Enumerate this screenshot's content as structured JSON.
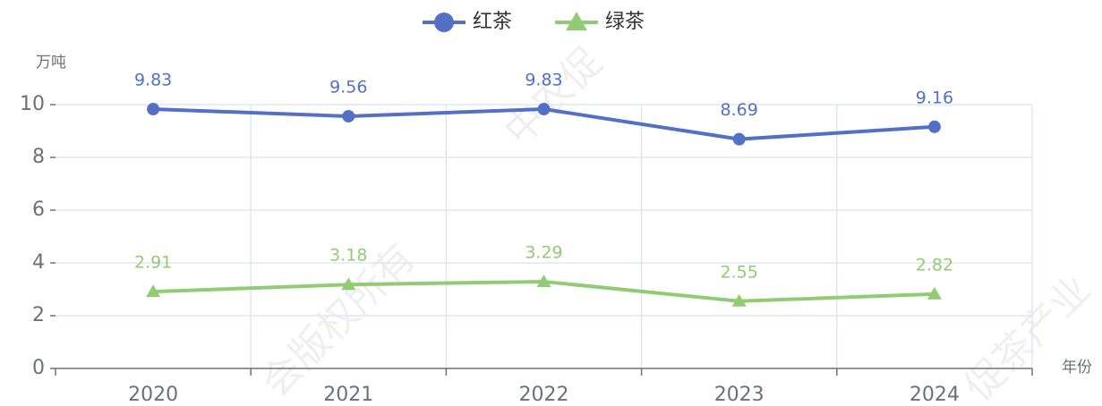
{
  "chart_data": {
    "type": "line",
    "y_axis_label": "万吨",
    "x_axis_label": "年份",
    "categories": [
      "2020",
      "2021",
      "2022",
      "2023",
      "2024"
    ],
    "series": [
      {
        "name": "红茶",
        "color": "#5470c6",
        "marker": "circle",
        "values": [
          9.83,
          9.56,
          9.83,
          8.69,
          9.16
        ]
      },
      {
        "name": "绿茶",
        "color": "#91cc75",
        "marker": "triangle",
        "values": [
          2.91,
          3.18,
          3.29,
          2.55,
          2.82
        ]
      }
    ],
    "ylim": [
      0,
      10
    ],
    "yticks": [
      0,
      2,
      4,
      6,
      8,
      10
    ],
    "grid": true,
    "legend": "top",
    "watermarks": [
      "中农促",
      "会版权所有",
      "促茶产业"
    ]
  }
}
